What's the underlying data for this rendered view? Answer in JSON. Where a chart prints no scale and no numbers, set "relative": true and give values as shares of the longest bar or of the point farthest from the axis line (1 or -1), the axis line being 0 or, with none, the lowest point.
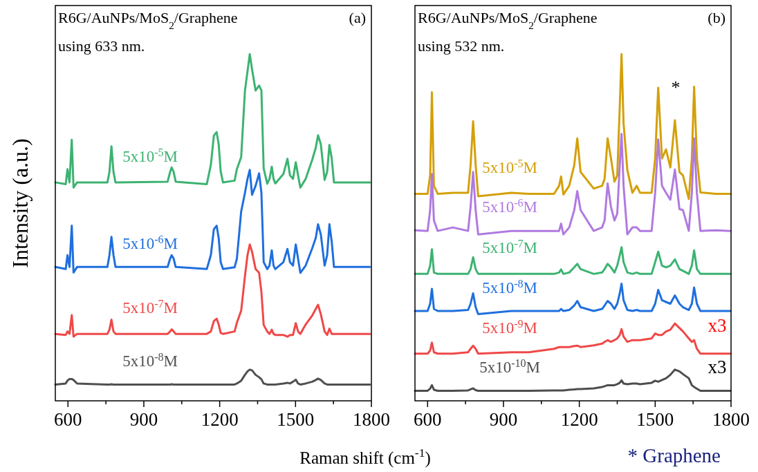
{
  "chart_data": [
    {
      "type": "line",
      "title": "R6G/AuNPs/MoS$_{2}$/Graphene",
      "subtitle": "using 633 nm.",
      "xlabel": "Raman shift (cm$^{-1}$)",
      "ylabel": "Intensity (a.u.)",
      "relative": true,
      "xlim": [
        550,
        1800
      ],
      "xticks": [
        600,
        {
          "value": 750,
          "label": null
        },
        900,
        {
          "value": 1050,
          "label": null
        },
        1200,
        {
          "value": 1350,
          "label": null
        },
        1500,
        {
          "value": 1650,
          "label": null
        },
        1800
      ],
      "annotations": [
        "(a)"
      ],
      "series": [
        {
          "name": "5x10$^{-5}$M",
          "color": "#3cb371",
          "x": [
            550,
            591,
            598,
            606,
            615,
            622,
            636,
            756,
            764,
            772,
            780,
            788,
            994,
            1004,
            1010,
            1018,
            1026,
            1149,
            1165,
            1177,
            1188,
            1196,
            1204,
            1213,
            1259,
            1268,
            1285,
            1300,
            1310,
            1319,
            1328,
            1342,
            1356,
            1365,
            1374,
            1388,
            1397,
            1406,
            1413,
            1420,
            1452,
            1468,
            1478,
            1490,
            1501,
            1510,
            1519,
            1540,
            1566,
            1580,
            1589,
            1600,
            1615,
            1625,
            1634,
            1643,
            1652,
            1700,
            1794
          ],
          "values": [
            0.63,
            0.625,
            0.668,
            0.63,
            0.753,
            0.615,
            0.63,
            0.63,
            0.66,
            0.734,
            0.66,
            0.63,
            0.632,
            0.66,
            0.673,
            0.66,
            0.632,
            0.625,
            0.68,
            0.765,
            0.775,
            0.74,
            0.662,
            0.63,
            0.635,
            0.668,
            0.703,
            0.895,
            0.95,
            1.0,
            0.956,
            0.895,
            0.909,
            0.895,
            0.67,
            0.626,
            0.64,
            0.675,
            0.64,
            0.627,
            0.654,
            0.698,
            0.65,
            0.64,
            0.688,
            0.65,
            0.615,
            0.64,
            0.695,
            0.73,
            0.766,
            0.74,
            0.637,
            0.66,
            0.738,
            0.7,
            0.63,
            0.63,
            0.63
          ]
        },
        {
          "name": "5x10$^{-6}$M",
          "color": "#1f6fde",
          "x": [
            550,
            591,
            598,
            606,
            615,
            622,
            636,
            756,
            764,
            772,
            780,
            788,
            994,
            1004,
            1010,
            1018,
            1026,
            1149,
            1165,
            1177,
            1188,
            1196,
            1204,
            1213,
            1259,
            1268,
            1285,
            1300,
            1310,
            1319,
            1328,
            1342,
            1356,
            1365,
            1374,
            1388,
            1397,
            1406,
            1413,
            1420,
            1452,
            1468,
            1478,
            1490,
            1501,
            1510,
            1519,
            1540,
            1566,
            1580,
            1589,
            1600,
            1615,
            1625,
            1634,
            1643,
            1652,
            1700,
            1794
          ],
          "values": [
            0.386,
            0.38,
            0.42,
            0.386,
            0.505,
            0.37,
            0.386,
            0.386,
            0.42,
            0.473,
            0.42,
            0.386,
            0.386,
            0.41,
            0.42,
            0.41,
            0.386,
            0.38,
            0.42,
            0.495,
            0.505,
            0.47,
            0.4,
            0.38,
            0.385,
            0.41,
            0.546,
            0.6,
            0.64,
            0.666,
            0.594,
            0.62,
            0.656,
            0.6,
            0.4,
            0.38,
            0.39,
            0.434,
            0.39,
            0.38,
            0.4,
            0.438,
            0.4,
            0.39,
            0.451,
            0.41,
            0.369,
            0.39,
            0.44,
            0.47,
            0.509,
            0.48,
            0.39,
            0.42,
            0.509,
            0.46,
            0.386,
            0.386,
            0.386
          ]
        },
        {
          "name": "5x10$^{-7}$M",
          "color": "#f04848",
          "x": [
            550,
            591,
            598,
            606,
            615,
            622,
            636,
            756,
            764,
            772,
            780,
            788,
            994,
            1004,
            1010,
            1018,
            1026,
            1149,
            1165,
            1177,
            1188,
            1196,
            1204,
            1213,
            1259,
            1268,
            1285,
            1300,
            1310,
            1319,
            1328,
            1342,
            1356,
            1365,
            1374,
            1388,
            1397,
            1406,
            1413,
            1420,
            1452,
            1468,
            1478,
            1490,
            1501,
            1510,
            1519,
            1540,
            1566,
            1580,
            1589,
            1600,
            1615,
            1625,
            1634,
            1643,
            1652,
            1700,
            1794
          ],
          "values": [
            0.193,
            0.19,
            0.2,
            0.193,
            0.247,
            0.185,
            0.193,
            0.193,
            0.205,
            0.234,
            0.2,
            0.193,
            0.193,
            0.2,
            0.206,
            0.2,
            0.193,
            0.193,
            0.2,
            0.23,
            0.237,
            0.22,
            0.196,
            0.193,
            0.2,
            0.225,
            0.26,
            0.36,
            0.42,
            0.451,
            0.43,
            0.38,
            0.369,
            0.314,
            0.219,
            0.2,
            0.193,
            0.205,
            0.193,
            0.19,
            0.19,
            0.185,
            0.19,
            0.19,
            0.224,
            0.2,
            0.193,
            0.22,
            0.246,
            0.265,
            0.277,
            0.25,
            0.2,
            0.19,
            0.208,
            0.193,
            0.193,
            0.193,
            0.193
          ]
        },
        {
          "name": "5x10$^{-8}$M",
          "color": "#505050",
          "x": [
            550,
            591,
            598,
            606,
            615,
            622,
            636,
            756,
            764,
            772,
            780,
            788,
            994,
            1004,
            1010,
            1018,
            1026,
            1149,
            1165,
            1177,
            1188,
            1196,
            1204,
            1213,
            1259,
            1268,
            1285,
            1300,
            1310,
            1319,
            1328,
            1342,
            1356,
            1365,
            1374,
            1388,
            1397,
            1406,
            1413,
            1420,
            1452,
            1468,
            1478,
            1490,
            1501,
            1510,
            1519,
            1540,
            1566,
            1580,
            1589,
            1600,
            1615,
            1625,
            1634,
            1643,
            1652,
            1700,
            1794
          ],
          "values": [
            0.047,
            0.05,
            0.058,
            0.063,
            0.063,
            0.06,
            0.05,
            0.047,
            0.047,
            0.048,
            0.047,
            0.047,
            0.047,
            0.047,
            0.048,
            0.047,
            0.047,
            0.047,
            0.047,
            0.047,
            0.047,
            0.047,
            0.047,
            0.047,
            0.047,
            0.05,
            0.058,
            0.075,
            0.085,
            0.09,
            0.088,
            0.075,
            0.068,
            0.062,
            0.05,
            0.047,
            0.047,
            0.047,
            0.047,
            0.047,
            0.05,
            0.052,
            0.05,
            0.055,
            0.061,
            0.05,
            0.047,
            0.05,
            0.055,
            0.06,
            0.064,
            0.06,
            0.05,
            0.047,
            0.047,
            0.047,
            0.047,
            0.047,
            0.047
          ]
        }
      ]
    },
    {
      "type": "line",
      "title": "R6G/AuNPs/MoS$_{2}$/Graphene",
      "subtitle": "using 532 nm.",
      "relative": true,
      "xlim": [
        550,
        1800
      ],
      "xticks": [
        600,
        {
          "value": 750,
          "label": null
        },
        900,
        {
          "value": 1050,
          "label": null
        },
        1200,
        {
          "value": 1350,
          "label": null
        },
        1500,
        {
          "value": 1650,
          "label": null
        },
        1800
      ],
      "annotations": [
        "(b)",
        "* Graphene",
        "*",
        "x3",
        "x3"
      ],
      "series": [
        {
          "name": "5x10$^{-5}$M",
          "color": "#d4a00a",
          "x": [
            550,
            600,
            610,
            617,
            625,
            640,
            700,
            760,
            770,
            780,
            790,
            800,
            931,
            1000,
            1100,
            1120,
            1128,
            1137,
            1160,
            1180,
            1192,
            1205,
            1257,
            1290,
            1300,
            1312,
            1325,
            1339,
            1350,
            1360,
            1367,
            1375,
            1390,
            1410,
            1427,
            1440,
            1486,
            1500,
            1512,
            1527,
            1543,
            1560,
            1578,
            1596,
            1610,
            1633,
            1645,
            1654,
            1665,
            1679,
            1740,
            1798
          ],
          "values": [
            0.597,
            0.597,
            0.65,
            0.89,
            0.62,
            0.597,
            0.6,
            0.6,
            0.68,
            0.806,
            0.68,
            0.59,
            0.6,
            0.597,
            0.597,
            0.62,
            0.647,
            0.595,
            0.62,
            0.68,
            0.757,
            0.66,
            0.612,
            0.62,
            0.64,
            0.757,
            0.7,
            0.632,
            0.65,
            0.85,
            1.0,
            0.8,
            0.665,
            0.6,
            0.62,
            0.6,
            0.6,
            0.7,
            0.903,
            0.699,
            0.725,
            0.673,
            0.809,
            0.66,
            0.65,
            0.582,
            0.7,
            0.906,
            0.7,
            0.601,
            0.597,
            0.597
          ]
        },
        {
          "name": "5x10$^{-6}$M",
          "color": "#b07ae0",
          "x": [
            550,
            600,
            610,
            617,
            625,
            640,
            700,
            760,
            770,
            780,
            790,
            800,
            931,
            1000,
            1100,
            1120,
            1128,
            1137,
            1160,
            1180,
            1192,
            1205,
            1257,
            1290,
            1300,
            1312,
            1325,
            1339,
            1350,
            1360,
            1367,
            1375,
            1390,
            1410,
            1427,
            1440,
            1486,
            1500,
            1512,
            1527,
            1543,
            1560,
            1578,
            1596,
            1610,
            1633,
            1645,
            1654,
            1665,
            1679,
            1740,
            1798
          ],
          "values": [
            0.492,
            0.49,
            0.55,
            0.654,
            0.52,
            0.49,
            0.5,
            0.49,
            0.56,
            0.66,
            0.55,
            0.48,
            0.49,
            0.49,
            0.49,
            0.49,
            0.511,
            0.48,
            0.5,
            0.55,
            0.605,
            0.55,
            0.49,
            0.5,
            0.52,
            0.627,
            0.56,
            0.52,
            0.54,
            0.68,
            0.77,
            0.62,
            0.48,
            0.5,
            0.5,
            0.49,
            0.49,
            0.6,
            0.754,
            0.62,
            0.6,
            0.58,
            0.667,
            0.553,
            0.55,
            0.49,
            0.6,
            0.757,
            0.6,
            0.49,
            0.492,
            0.49
          ]
        },
        {
          "name": "5x10$^{-7}$M",
          "color": "#3cb371",
          "x": [
            550,
            600,
            610,
            617,
            625,
            640,
            700,
            760,
            770,
            780,
            790,
            800,
            931,
            1000,
            1100,
            1120,
            1128,
            1137,
            1160,
            1180,
            1192,
            1205,
            1257,
            1290,
            1300,
            1312,
            1325,
            1339,
            1350,
            1360,
            1367,
            1375,
            1390,
            1410,
            1427,
            1440,
            1486,
            1500,
            1512,
            1527,
            1543,
            1560,
            1578,
            1596,
            1610,
            1633,
            1645,
            1654,
            1665,
            1679,
            1740,
            1798
          ],
          "values": [
            0.366,
            0.366,
            0.39,
            0.437,
            0.37,
            0.366,
            0.366,
            0.366,
            0.38,
            0.414,
            0.38,
            0.366,
            0.366,
            0.366,
            0.366,
            0.37,
            0.379,
            0.366,
            0.37,
            0.385,
            0.395,
            0.38,
            0.366,
            0.37,
            0.38,
            0.395,
            0.385,
            0.37,
            0.39,
            0.42,
            0.443,
            0.4,
            0.37,
            0.366,
            0.37,
            0.366,
            0.366,
            0.4,
            0.43,
            0.39,
            0.385,
            0.39,
            0.408,
            0.38,
            0.375,
            0.366,
            0.39,
            0.434,
            0.38,
            0.366,
            0.366,
            0.366
          ]
        },
        {
          "name": "5x10$^{-8}$M",
          "color": "#1f6fde",
          "x": [
            550,
            600,
            610,
            617,
            625,
            640,
            700,
            760,
            770,
            780,
            790,
            800,
            931,
            1000,
            1100,
            1120,
            1128,
            1137,
            1160,
            1180,
            1192,
            1205,
            1257,
            1290,
            1300,
            1312,
            1325,
            1339,
            1350,
            1360,
            1367,
            1375,
            1390,
            1410,
            1427,
            1440,
            1486,
            1500,
            1512,
            1527,
            1543,
            1560,
            1578,
            1596,
            1610,
            1633,
            1645,
            1654,
            1665,
            1679,
            1740,
            1798
          ],
          "values": [
            0.259,
            0.259,
            0.28,
            0.323,
            0.265,
            0.259,
            0.259,
            0.262,
            0.28,
            0.31,
            0.27,
            0.25,
            0.259,
            0.259,
            0.259,
            0.259,
            0.265,
            0.259,
            0.262,
            0.275,
            0.288,
            0.27,
            0.259,
            0.265,
            0.275,
            0.288,
            0.28,
            0.265,
            0.28,
            0.31,
            0.338,
            0.29,
            0.262,
            0.259,
            0.262,
            0.259,
            0.259,
            0.28,
            0.32,
            0.29,
            0.285,
            0.28,
            0.304,
            0.28,
            0.27,
            0.262,
            0.28,
            0.327,
            0.28,
            0.259,
            0.259,
            0.259
          ]
        },
        {
          "name": "5x10$^{-9}$M",
          "color": "#f04848",
          "x": [
            550,
            600,
            610,
            617,
            625,
            640,
            700,
            760,
            770,
            780,
            790,
            800,
            931,
            1000,
            1100,
            1120,
            1128,
            1137,
            1160,
            1180,
            1192,
            1205,
            1257,
            1290,
            1300,
            1312,
            1325,
            1339,
            1350,
            1360,
            1367,
            1375,
            1390,
            1410,
            1427,
            1440,
            1486,
            1500,
            1512,
            1527,
            1543,
            1560,
            1578,
            1596,
            1610,
            1633,
            1645,
            1654,
            1665,
            1679,
            1740,
            1798
          ],
          "values": [
            0.136,
            0.136,
            0.145,
            0.168,
            0.14,
            0.136,
            0.136,
            0.14,
            0.15,
            0.159,
            0.15,
            0.136,
            0.14,
            0.14,
            0.15,
            0.155,
            0.155,
            0.155,
            0.155,
            0.158,
            0.159,
            0.155,
            0.16,
            0.165,
            0.17,
            0.175,
            0.17,
            0.175,
            0.18,
            0.19,
            0.207,
            0.185,
            0.17,
            0.175,
            0.175,
            0.175,
            0.18,
            0.194,
            0.19,
            0.19,
            0.2,
            0.205,
            0.223,
            0.21,
            0.2,
            0.18,
            0.17,
            0.175,
            0.15,
            0.136,
            0.136,
            0.136
          ]
        },
        {
          "name": "5x10$^{-10}$M",
          "color": "#4d4d4d",
          "x": [
            550,
            600,
            610,
            617,
            625,
            640,
            700,
            760,
            770,
            780,
            790,
            800,
            931,
            1000,
            1100,
            1120,
            1128,
            1137,
            1160,
            1180,
            1192,
            1205,
            1257,
            1290,
            1300,
            1312,
            1325,
            1339,
            1350,
            1360,
            1367,
            1375,
            1390,
            1410,
            1427,
            1440,
            1486,
            1500,
            1512,
            1527,
            1543,
            1560,
            1578,
            1596,
            1610,
            1633,
            1645,
            1654,
            1665,
            1679,
            1740,
            1798
          ],
          "values": [
            0.029,
            0.029,
            0.035,
            0.045,
            0.032,
            0.029,
            0.029,
            0.03,
            0.033,
            0.036,
            0.031,
            0.029,
            0.029,
            0.029,
            0.03,
            0.03,
            0.03,
            0.03,
            0.032,
            0.033,
            0.034,
            0.034,
            0.036,
            0.04,
            0.042,
            0.045,
            0.045,
            0.045,
            0.048,
            0.052,
            0.059,
            0.05,
            0.048,
            0.05,
            0.05,
            0.048,
            0.052,
            0.058,
            0.055,
            0.06,
            0.065,
            0.075,
            0.09,
            0.085,
            0.077,
            0.065,
            0.045,
            0.04,
            0.035,
            0.029,
            0.029,
            0.029
          ]
        }
      ]
    }
  ]
}
